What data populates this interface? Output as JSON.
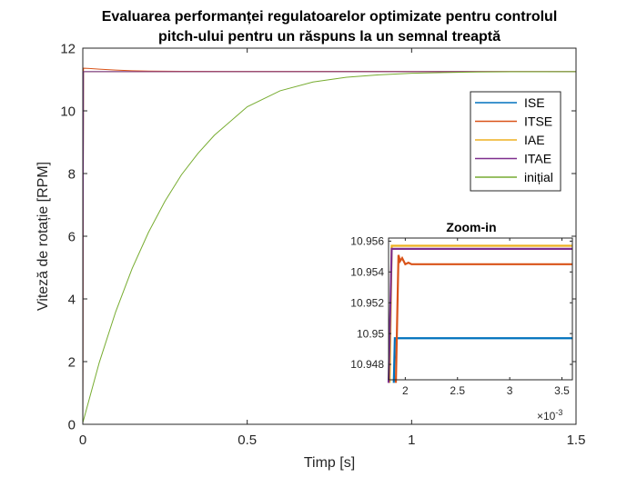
{
  "colors": {
    "ISE": "#0072BD",
    "ITSE": "#D95319",
    "IAE": "#EDB120",
    "ITAE": "#7E2F8E",
    "initial": "#77AC30"
  },
  "chart_data": [
    {
      "type": "line",
      "title": [
        "Evaluarea performanței regulatoarelor optimizate pentru controlul",
        "pitch-ului pentru un răspuns la un semnal treaptă"
      ],
      "xlabel": "Timp [s]",
      "ylabel": "Viteză de rotație [RPM]",
      "xlim": [
        0,
        1.5
      ],
      "ylim": [
        0,
        12
      ],
      "xticks": [
        0,
        0.5,
        1,
        1.5
      ],
      "xtick_labels": [
        "0",
        "0.5",
        "1",
        "1.5"
      ],
      "yticks": [
        0,
        2,
        4,
        6,
        8,
        10,
        12
      ],
      "ytick_labels": [
        "0",
        "2",
        "4",
        "6",
        "8",
        "10",
        "12"
      ],
      "grid": false,
      "legend_position": "upper-right",
      "series": [
        {
          "name": "ISE",
          "color": "ISE",
          "x": [
            0,
            0.002,
            1.5
          ],
          "y": [
            0,
            11.25,
            11.25
          ]
        },
        {
          "name": "ITSE",
          "color": "ITSE",
          "x": [
            0,
            0.002,
            0.02,
            0.05,
            0.1,
            0.15,
            0.2,
            0.3,
            1.5
          ],
          "y": [
            0,
            11.36,
            11.35,
            11.33,
            11.3,
            11.28,
            11.27,
            11.26,
            11.25
          ]
        },
        {
          "name": "IAE",
          "color": "IAE",
          "x": [
            0,
            0.002,
            1.5
          ],
          "y": [
            0,
            11.25,
            11.25
          ]
        },
        {
          "name": "ITAE",
          "color": "ITAE",
          "x": [
            0,
            0.002,
            1.5
          ],
          "y": [
            0,
            11.25,
            11.25
          ]
        },
        {
          "name": "inițial",
          "color": "initial",
          "x": [
            0,
            0.05,
            0.1,
            0.15,
            0.2,
            0.25,
            0.3,
            0.35,
            0.4,
            0.5,
            0.6,
            0.7,
            0.8,
            0.9,
            1.0,
            1.1,
            1.2,
            1.3,
            1.4,
            1.5
          ],
          "y": [
            0.05,
            1.97,
            3.59,
            4.97,
            6.13,
            7.12,
            7.96,
            8.64,
            9.22,
            10.13,
            10.64,
            10.92,
            11.07,
            11.15,
            11.2,
            11.22,
            11.24,
            11.245,
            11.248,
            11.25
          ]
        }
      ]
    },
    {
      "type": "line",
      "title": "Zoom-in",
      "xlim": [
        0.00184,
        0.0036
      ],
      "ylim": [
        10.947,
        10.9562
      ],
      "xticks": [
        0.002,
        0.0025,
        0.003,
        0.0035
      ],
      "xtick_labels": [
        "2",
        "2.5",
        "3",
        "3.5"
      ],
      "x_exponent_label": "×10",
      "x_exponent_power": "-3",
      "yticks": [
        10.948,
        10.95,
        10.952,
        10.954,
        10.956
      ],
      "ytick_labels": [
        "10.948",
        "10.95",
        "10.952",
        "10.954",
        "10.956"
      ],
      "grid": false,
      "series": [
        {
          "color": "ISE",
          "x": [
            0.00189,
            0.0019,
            0.00191,
            0.0036
          ],
          "y": [
            10.9468,
            10.9497,
            10.9497,
            10.9497
          ]
        },
        {
          "color": "ITSE",
          "x": [
            0.00191,
            0.001935,
            0.00195,
            0.00197,
            0.002,
            0.00203,
            0.00206,
            0.0021,
            0.0036
          ],
          "y": [
            10.9468,
            10.9551,
            10.9547,
            10.9549,
            10.9545,
            10.9546,
            10.9545,
            10.9545,
            10.9545
          ]
        },
        {
          "color": "IAE",
          "x": [
            0.00185,
            0.00187,
            0.00189,
            0.0036
          ],
          "y": [
            10.9468,
            10.9557,
            10.9557,
            10.9557
          ]
        },
        {
          "color": "ITAE",
          "x": [
            0.00184,
            0.00187,
            0.00189,
            0.0036
          ],
          "y": [
            10.9468,
            10.9555,
            10.9555,
            10.9555
          ]
        }
      ]
    }
  ]
}
